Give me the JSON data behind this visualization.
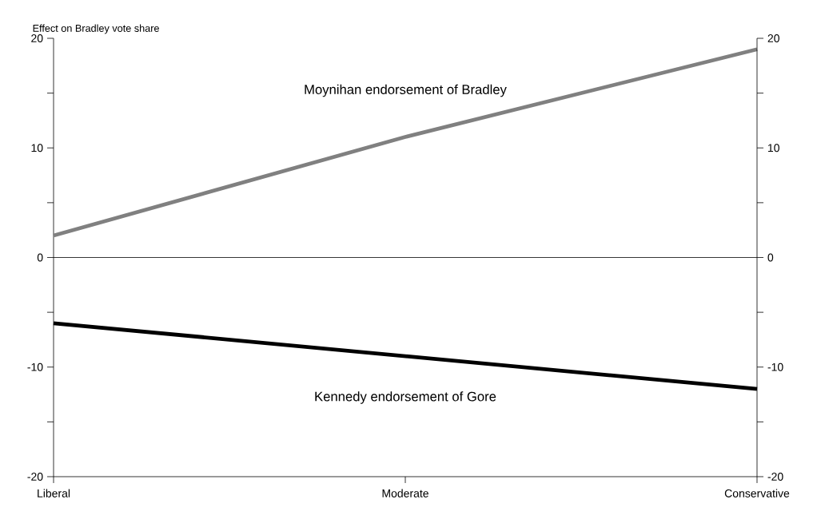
{
  "chart_data": {
    "type": "line",
    "ylabel": "Effect on Bradley vote share",
    "categories": [
      "Liberal",
      "Moderate",
      "Conservative"
    ],
    "series": [
      {
        "name": "Moynihan endorsement of Bradley",
        "color": "#808080",
        "values": [
          2,
          11,
          19
        ]
      },
      {
        "name": "Kennedy endorsement of Gore",
        "color": "#000000",
        "values": [
          -6,
          -9,
          -12
        ]
      }
    ],
    "ylim": [
      -20,
      20
    ],
    "yticks": [
      -20,
      {
        "value": -15,
        "label": null
      },
      -10,
      {
        "value": -5,
        "label": null
      },
      0,
      {
        "value": 5,
        "label": null
      },
      10,
      {
        "value": 15,
        "label": null
      },
      20
    ],
    "y2lim": [
      -20,
      20
    ],
    "y2ticks": [
      -20,
      {
        "value": -15,
        "label": null
      },
      -10,
      {
        "value": -5,
        "label": null
      },
      0,
      {
        "value": 5,
        "label": null
      },
      10,
      {
        "value": 15,
        "label": null
      },
      20
    ],
    "ref_lines": [
      {
        "axis": "y",
        "value": 0
      }
    ]
  }
}
